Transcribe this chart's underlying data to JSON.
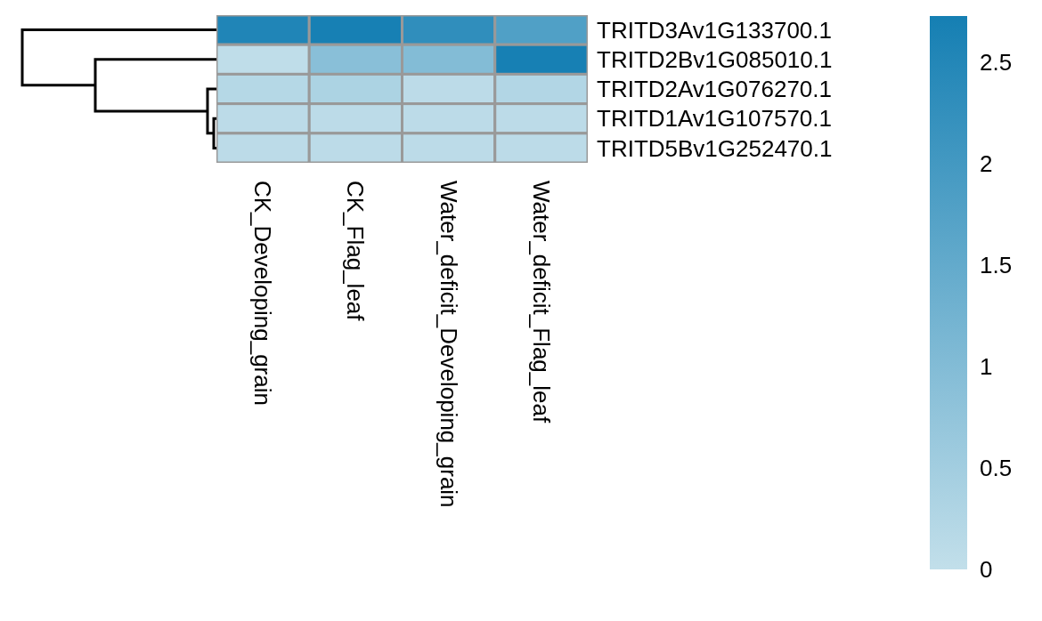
{
  "chart_data": {
    "type": "heatmap",
    "categories": [
      "CK_Developing_grain",
      "CK_Flag_leaf",
      "Water_deficit_Developing_grain",
      "Water_deficit_Flag_leaf"
    ],
    "y_categories": [
      "TRITD3Av1G133700.1",
      "TRITD2Bv1G085010.1",
      "TRITD2Av1G076270.1",
      "TRITD1Av1G107570.1",
      "TRITD5Bv1G252470.1"
    ],
    "cells": [
      [
        2.55,
        2.7,
        2.3,
        1.8
      ],
      [
        0.05,
        0.9,
        1.0,
        2.7
      ],
      [
        0.2,
        0.35,
        0.1,
        0.25
      ],
      [
        0.1,
        0.1,
        0.1,
        0.1
      ],
      [
        0.1,
        0.1,
        0.1,
        0.1
      ]
    ],
    "clim": [
      0,
      2.73
    ],
    "cticks": [
      0,
      0.5,
      1,
      1.5,
      2,
      2.5
    ]
  }
}
